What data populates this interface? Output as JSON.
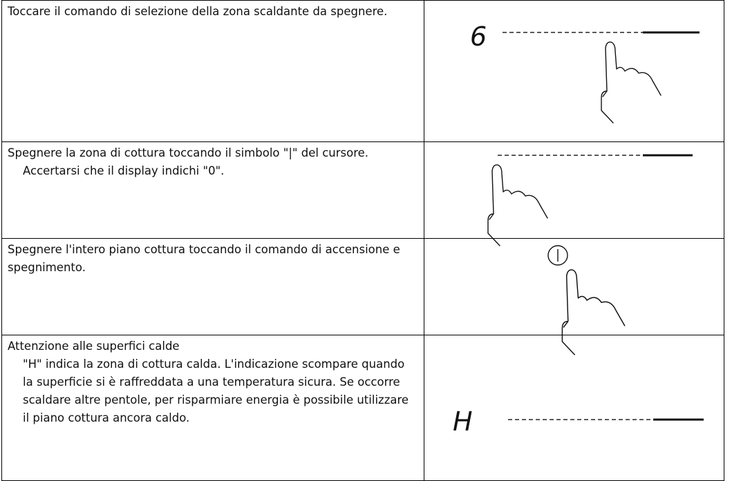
{
  "rows": [
    {
      "text": "Toccare il comando di selezione della zona scaldante da spegnere.",
      "display": "6"
    },
    {
      "text": "Spegnere la zona di cottura toccando il simbolo \"|\" del cursore.",
      "note": "Accertarsi che il display indichi \"0\"."
    },
    {
      "text": "Spegnere l'intero piano cottura toccando il comando di accensione e spegnimento."
    },
    {
      "text": "Attenzione alle superfici calde",
      "note": "\"H\" indica la zona di cottura calda. L'indicazione scompare quando la superficie si è raffreddata a una temperatura sicura. Se occorre scaldare altre pentole, per risparmiare energia è possibile utilizzare il piano cottura ancora caldo.",
      "display": "H"
    }
  ]
}
